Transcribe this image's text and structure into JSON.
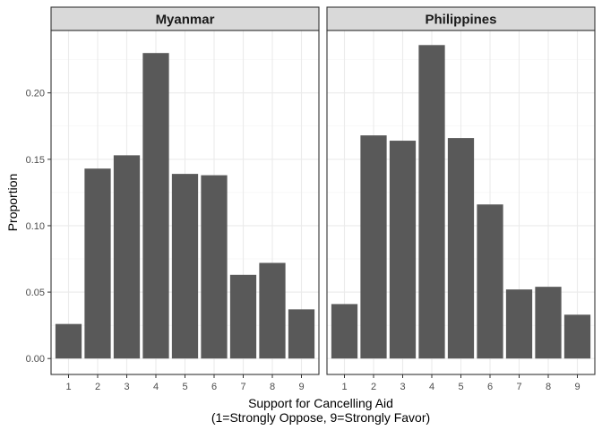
{
  "chart_data": {
    "type": "bar",
    "ylabel": "Proportion",
    "xlabel_lines": [
      "Support for Cancelling Aid",
      "(1=Strongly Oppose, 9=Strongly Favor)"
    ],
    "categories": [
      "1",
      "2",
      "3",
      "4",
      "5",
      "6",
      "7",
      "8",
      "9"
    ],
    "ylim": [
      -0.012,
      0.247
    ],
    "y_ticks": [
      0.0,
      0.05,
      0.1,
      0.15,
      0.2
    ],
    "y_tick_labels": [
      "0.00",
      "0.05",
      "0.10",
      "0.15",
      "0.20"
    ],
    "grid": true,
    "bar_color": "#595959",
    "strip_fill": "#d9d9d9",
    "panels": [
      {
        "name": "Myanmar",
        "values": [
          0.026,
          0.143,
          0.153,
          0.23,
          0.139,
          0.138,
          0.063,
          0.072,
          0.037
        ]
      },
      {
        "name": "Philippines",
        "values": [
          0.041,
          0.168,
          0.164,
          0.236,
          0.166,
          0.116,
          0.052,
          0.054,
          0.033
        ]
      }
    ]
  }
}
